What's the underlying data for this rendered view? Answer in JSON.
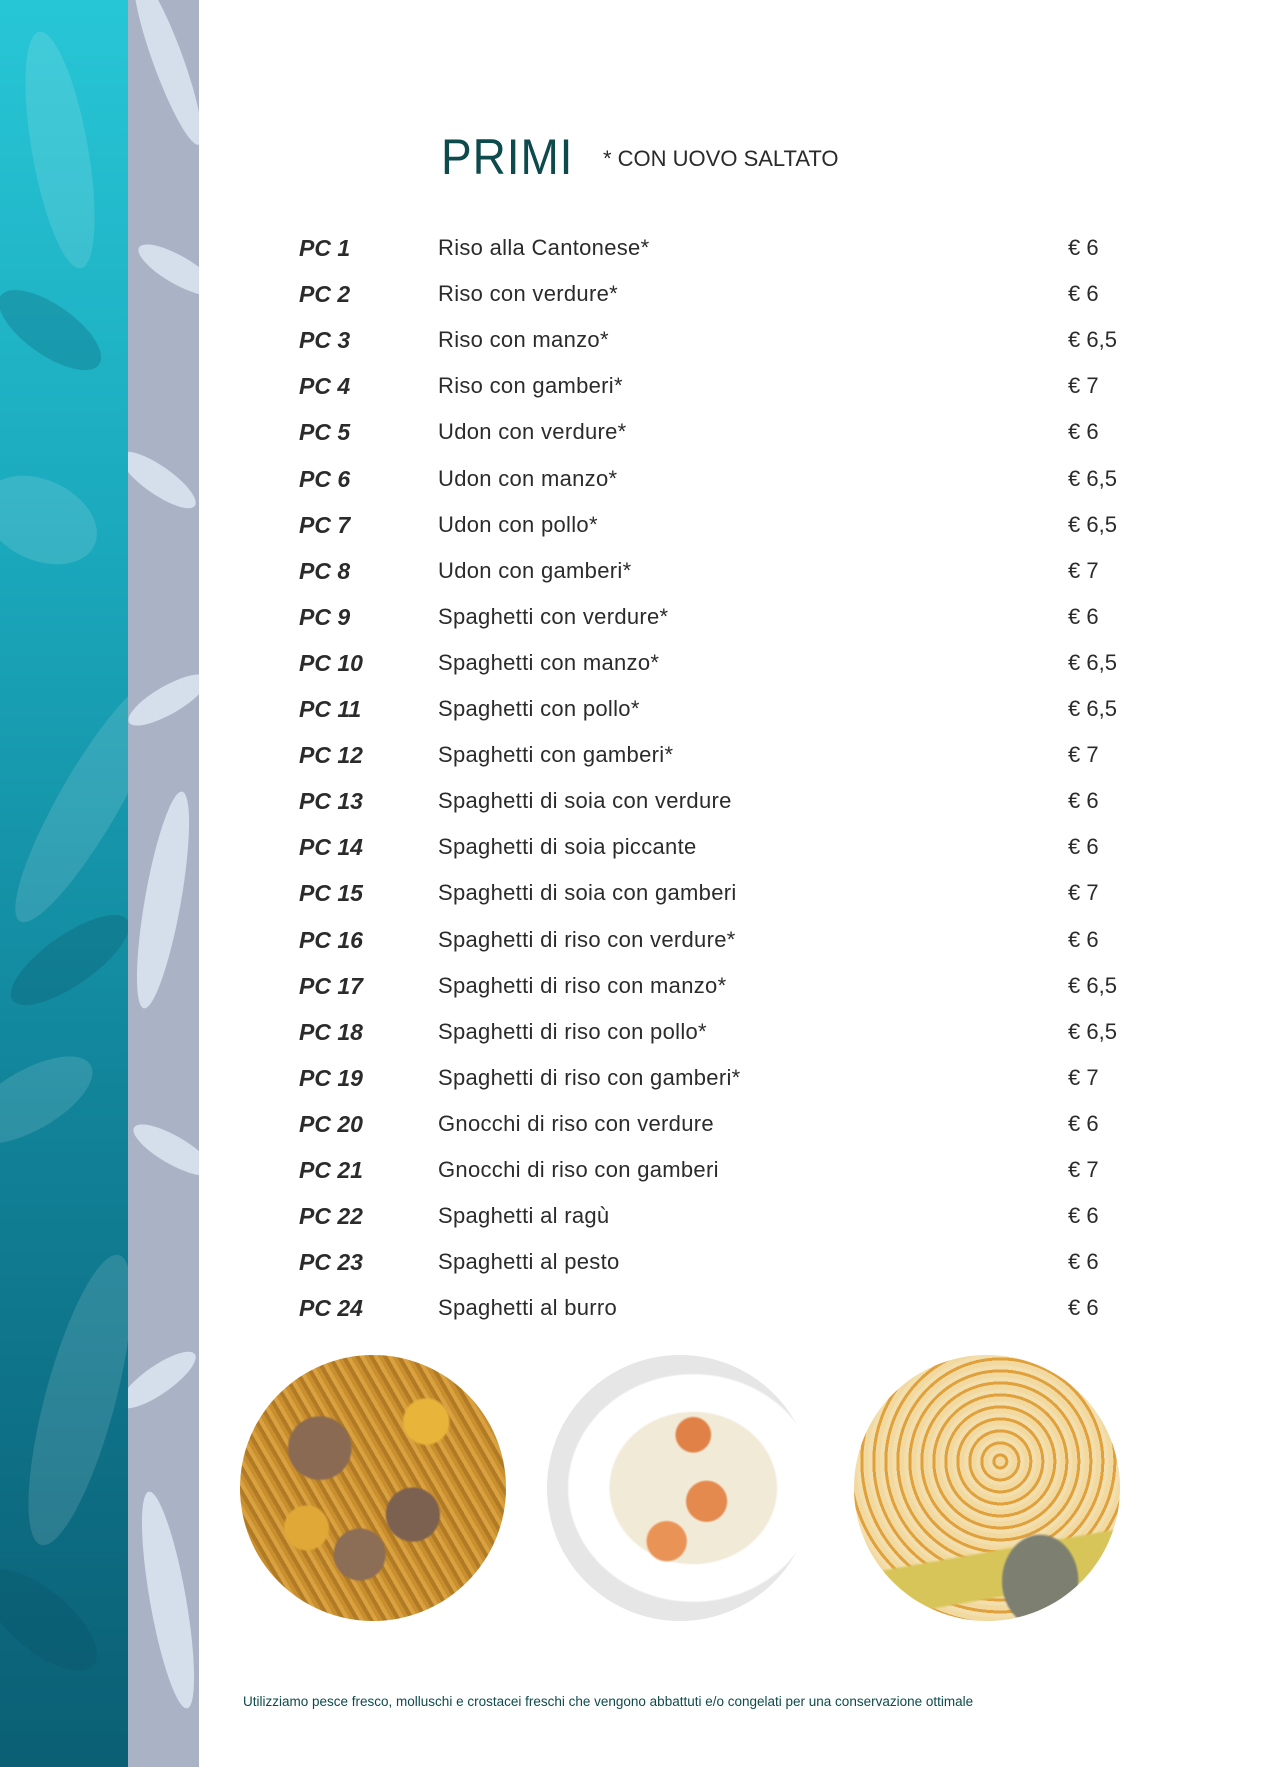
{
  "header": {
    "title": "PRIMI",
    "note": "* CON UOVO SALTATO"
  },
  "colors": {
    "accent": "#0e4a4c",
    "strip_teal": "#1ba9bd",
    "strip_grey": "#aab3c6"
  },
  "menu": [
    {
      "code": "PC 1",
      "name": "Riso alla Cantonese*",
      "price": "€ 6"
    },
    {
      "code": "PC 2",
      "name": "Riso con verdure*",
      "price": "€ 6"
    },
    {
      "code": "PC 3",
      "name": "Riso con manzo*",
      "price": "€ 6,5"
    },
    {
      "code": "PC 4",
      "name": "Riso con gamberi*",
      "price": "€ 7"
    },
    {
      "code": "PC 5",
      "name": "Udon con verdure*",
      "price": "€ 6"
    },
    {
      "code": "PC 6",
      "name": "Udon con manzo*",
      "price": "€ 6,5"
    },
    {
      "code": "PC 7",
      "name": "Udon con pollo*",
      "price": "€ 6,5"
    },
    {
      "code": "PC 8",
      "name": "Udon con gamberi*",
      "price": "€ 7"
    },
    {
      "code": "PC 9",
      "name": "Spaghetti con verdure*",
      "price": "€ 6"
    },
    {
      "code": "PC 10",
      "name": "Spaghetti con manzo*",
      "price": "€ 6,5"
    },
    {
      "code": "PC 11",
      "name": "Spaghetti con pollo*",
      "price": "€ 6,5"
    },
    {
      "code": "PC 12",
      "name": "Spaghetti con gamberi*",
      "price": "€ 7"
    },
    {
      "code": "PC 13",
      "name": "Spaghetti di soia con verdure",
      "price": "€ 6"
    },
    {
      "code": "PC 14",
      "name": "Spaghetti di soia piccante",
      "price": "€ 6"
    },
    {
      "code": "PC 15",
      "name": "Spaghetti di soia con gamberi",
      "price": "€ 7"
    },
    {
      "code": "PC 16",
      "name": "Spaghetti di riso con verdure*",
      "price": "€ 6"
    },
    {
      "code": "PC 17",
      "name": "Spaghetti di riso con manzo*",
      "price": "€ 6,5"
    },
    {
      "code": "PC 18",
      "name": "Spaghetti di riso con pollo*",
      "price": "€ 6,5"
    },
    {
      "code": "PC 19",
      "name": "Spaghetti di riso con gamberi*",
      "price": "€ 7"
    },
    {
      "code": "PC 20",
      "name": "Gnocchi di riso con verdure",
      "price": "€ 6"
    },
    {
      "code": "PC 21",
      "name": "Gnocchi di riso con gamberi",
      "price": "€ 7"
    },
    {
      "code": "PC 22",
      "name": "Spaghetti al ragù",
      "price": "€ 6"
    },
    {
      "code": "PC 23",
      "name": "Spaghetti al pesto",
      "price": "€ 6"
    },
    {
      "code": "PC 24",
      "name": "Spaghetti al burro",
      "price": "€ 6"
    }
  ],
  "footer": {
    "text": "Utilizziamo pesce fresco, molluschi e crostacei freschi che vengono abbattuti e/o congelati per una conservazione ottimale"
  }
}
